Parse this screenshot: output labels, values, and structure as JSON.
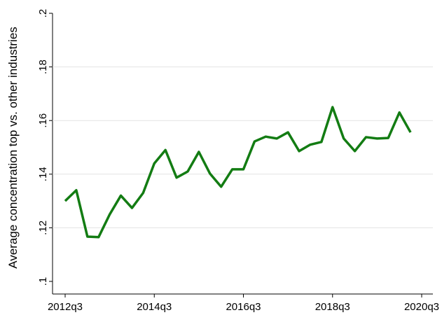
{
  "chart_data": {
    "type": "line",
    "y_label": "Average concentration top vs. other industries",
    "x": [
      "2012q3",
      "2012q4",
      "2013q1",
      "2013q2",
      "2013q3",
      "2013q4",
      "2014q1",
      "2014q2",
      "2014q3",
      "2014q4",
      "2015q1",
      "2015q2",
      "2015q3",
      "2015q4",
      "2016q1",
      "2016q2",
      "2016q3",
      "2016q4",
      "2017q1",
      "2017q2",
      "2017q3",
      "2017q4",
      "2018q1",
      "2018q2",
      "2018q3",
      "2018q4",
      "2019q1",
      "2019q2",
      "2019q3",
      "2019q4",
      "2020q1",
      "2020q2"
    ],
    "series": [
      {
        "color": "#137c13",
        "values": [
          0.13,
          0.134,
          0.1167,
          0.1165,
          0.125,
          0.132,
          0.1274,
          0.133,
          0.144,
          0.149,
          0.1387,
          0.141,
          0.1483,
          0.1402,
          0.1353,
          0.1418,
          0.1418,
          0.1522,
          0.154,
          0.1533,
          0.1556,
          0.1486,
          0.151,
          0.152,
          0.165,
          0.1533,
          0.1486,
          0.1538,
          0.1533,
          0.1535,
          0.163,
          0.1556
        ]
      }
    ],
    "ylim": [
      0.1,
      0.2
    ],
    "yticks": [
      {
        "value": 0.1,
        "label": ".1"
      },
      {
        "value": 0.12,
        "label": ".12"
      },
      {
        "value": 0.14,
        "label": ".14"
      },
      {
        "value": 0.16,
        "label": ".16"
      },
      {
        "value": 0.18,
        "label": ".18"
      },
      {
        "value": 0.2,
        "label": ".2"
      }
    ],
    "xticks": [
      "2012q3",
      "2014q3",
      "2016q3",
      "2018q3",
      "2020q3"
    ],
    "grid": true
  }
}
